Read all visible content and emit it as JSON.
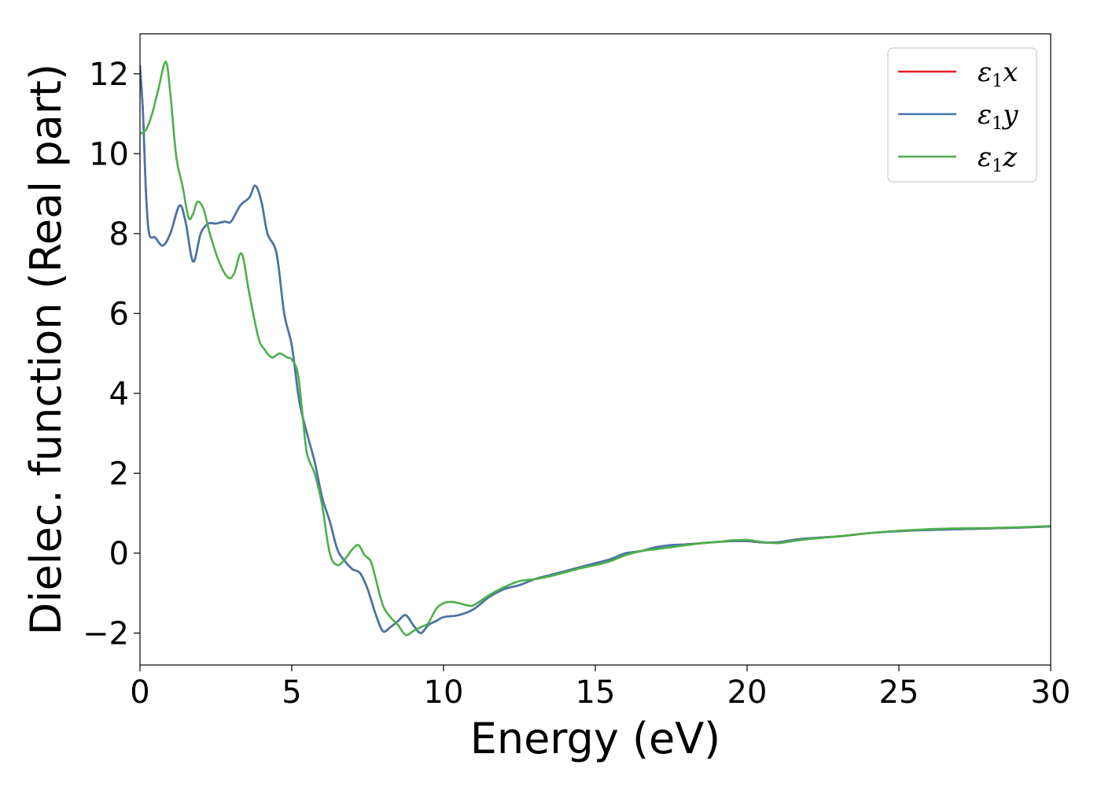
{
  "chart_data": {
    "type": "line",
    "xlabel": "Energy (eV)",
    "ylabel": "Dielec. function (Real part)",
    "xlim": [
      0,
      30
    ],
    "ylim": [
      -2.8,
      13
    ],
    "xticks": [
      0,
      5,
      10,
      15,
      20,
      25,
      30
    ],
    "yticks": [
      -2,
      0,
      2,
      4,
      6,
      8,
      10,
      12
    ],
    "ytick_labels": [
      "−2",
      "0",
      "2",
      "4",
      "6",
      "8",
      "10",
      "12"
    ],
    "grid": false,
    "legend_position": "top-right",
    "series": [
      {
        "name": "x",
        "legend_symbol": "ε",
        "legend_sub": "1",
        "color": "#e41a1c",
        "x": [
          0,
          0.1,
          0.2,
          0.3,
          0.5,
          0.75,
          1.0,
          1.3,
          1.5,
          1.75,
          2.0,
          2.25,
          2.5,
          2.8,
          3.0,
          3.3,
          3.6,
          3.8,
          4.0,
          4.2,
          4.5,
          4.75,
          5.0,
          5.25,
          5.5,
          5.75,
          6.0,
          6.25,
          6.5,
          6.75,
          7.0,
          7.25,
          7.5,
          7.75,
          8.0,
          8.25,
          8.5,
          8.75,
          9.0,
          9.25,
          9.5,
          9.75,
          10.0,
          10.5,
          11.0,
          11.5,
          12.0,
          12.5,
          13.0,
          13.5,
          14.0,
          14.5,
          15.0,
          15.5,
          16.0,
          16.5,
          17.0,
          17.5,
          18.0,
          18.5,
          19.0,
          19.5,
          20.0,
          20.5,
          21.0,
          21.5,
          22.0,
          23.0,
          24.0,
          25.0,
          26.0,
          27.0,
          28.0,
          29.0,
          30.0
        ],
        "y": [
          12.2,
          11.0,
          9.0,
          8.0,
          7.9,
          7.7,
          8.0,
          8.7,
          8.3,
          7.3,
          8.0,
          8.25,
          8.25,
          8.3,
          8.3,
          8.7,
          8.9,
          9.2,
          8.8,
          8.0,
          7.5,
          6.0,
          5.2,
          3.8,
          3.0,
          2.3,
          1.4,
          0.8,
          0.1,
          -0.2,
          -0.4,
          -0.5,
          -0.9,
          -1.5,
          -1.95,
          -1.85,
          -1.7,
          -1.55,
          -1.8,
          -2.0,
          -1.8,
          -1.7,
          -1.6,
          -1.55,
          -1.4,
          -1.1,
          -0.9,
          -0.8,
          -0.65,
          -0.55,
          -0.45,
          -0.35,
          -0.25,
          -0.15,
          0.0,
          0.05,
          0.15,
          0.2,
          0.22,
          0.25,
          0.28,
          0.3,
          0.3,
          0.27,
          0.27,
          0.33,
          0.37,
          0.42,
          0.5,
          0.55,
          0.58,
          0.6,
          0.62,
          0.64,
          0.67
        ]
      },
      {
        "name": "y",
        "legend_symbol": "ε",
        "legend_sub": "1",
        "color": "#4477aa",
        "x": [
          0,
          0.1,
          0.2,
          0.3,
          0.5,
          0.75,
          1.0,
          1.3,
          1.5,
          1.75,
          2.0,
          2.25,
          2.5,
          2.8,
          3.0,
          3.3,
          3.6,
          3.8,
          4.0,
          4.2,
          4.5,
          4.75,
          5.0,
          5.25,
          5.5,
          5.75,
          6.0,
          6.25,
          6.5,
          6.75,
          7.0,
          7.25,
          7.5,
          7.75,
          8.0,
          8.25,
          8.5,
          8.75,
          9.0,
          9.25,
          9.5,
          9.75,
          10.0,
          10.5,
          11.0,
          11.5,
          12.0,
          12.5,
          13.0,
          13.5,
          14.0,
          14.5,
          15.0,
          15.5,
          16.0,
          16.5,
          17.0,
          17.5,
          18.0,
          18.5,
          19.0,
          19.5,
          20.0,
          20.5,
          21.0,
          21.5,
          22.0,
          23.0,
          24.0,
          25.0,
          26.0,
          27.0,
          28.0,
          29.0,
          30.0
        ],
        "y": [
          12.2,
          11.0,
          9.0,
          8.0,
          7.9,
          7.7,
          8.0,
          8.7,
          8.3,
          7.3,
          8.0,
          8.25,
          8.25,
          8.3,
          8.3,
          8.7,
          8.9,
          9.2,
          8.8,
          8.0,
          7.5,
          6.0,
          5.2,
          3.8,
          3.0,
          2.3,
          1.4,
          0.8,
          0.1,
          -0.2,
          -0.4,
          -0.5,
          -0.9,
          -1.5,
          -1.95,
          -1.85,
          -1.7,
          -1.55,
          -1.8,
          -2.0,
          -1.8,
          -1.7,
          -1.6,
          -1.55,
          -1.4,
          -1.1,
          -0.9,
          -0.8,
          -0.65,
          -0.55,
          -0.45,
          -0.35,
          -0.25,
          -0.15,
          0.0,
          0.05,
          0.15,
          0.2,
          0.22,
          0.25,
          0.28,
          0.3,
          0.3,
          0.27,
          0.27,
          0.33,
          0.37,
          0.42,
          0.5,
          0.55,
          0.58,
          0.6,
          0.62,
          0.64,
          0.67
        ]
      },
      {
        "name": "z",
        "legend_symbol": "ε",
        "legend_sub": "1",
        "color": "#4daf4a",
        "x": [
          0,
          0.2,
          0.4,
          0.6,
          0.85,
          1.0,
          1.2,
          1.4,
          1.6,
          1.75,
          1.9,
          2.1,
          2.3,
          2.6,
          2.9,
          3.1,
          3.35,
          3.6,
          3.9,
          4.1,
          4.35,
          4.6,
          4.85,
          5.0,
          5.2,
          5.35,
          5.5,
          5.75,
          6.0,
          6.25,
          6.5,
          6.75,
          7.0,
          7.2,
          7.4,
          7.6,
          7.75,
          8.0,
          8.25,
          8.5,
          8.75,
          9.0,
          9.25,
          9.5,
          9.75,
          10.0,
          10.25,
          10.5,
          10.75,
          11.0,
          11.5,
          12.0,
          12.5,
          13.0,
          13.5,
          14.0,
          14.5,
          15.0,
          15.5,
          16.0,
          16.5,
          17.0,
          17.5,
          18.0,
          18.5,
          19.0,
          19.5,
          20.0,
          20.5,
          21.0,
          21.5,
          22.0,
          23.0,
          24.0,
          25.0,
          26.0,
          27.0,
          28.0,
          29.0,
          30.0
        ],
        "y": [
          10.5,
          10.6,
          11.0,
          11.6,
          12.3,
          11.5,
          9.9,
          9.2,
          8.4,
          8.5,
          8.8,
          8.6,
          8.0,
          7.3,
          6.9,
          7.0,
          7.5,
          6.5,
          5.4,
          5.1,
          4.9,
          5.0,
          4.9,
          4.85,
          4.5,
          3.5,
          2.5,
          2.0,
          1.2,
          0.0,
          -0.3,
          -0.15,
          0.1,
          0.2,
          -0.05,
          -0.2,
          -0.6,
          -1.3,
          -1.6,
          -1.8,
          -2.05,
          -1.95,
          -1.85,
          -1.75,
          -1.4,
          -1.25,
          -1.22,
          -1.25,
          -1.3,
          -1.3,
          -1.05,
          -0.85,
          -0.7,
          -0.65,
          -0.58,
          -0.48,
          -0.38,
          -0.3,
          -0.2,
          -0.05,
          0.05,
          0.1,
          0.15,
          0.2,
          0.25,
          0.28,
          0.32,
          0.33,
          0.28,
          0.25,
          0.3,
          0.35,
          0.42,
          0.5,
          0.56,
          0.6,
          0.62,
          0.63,
          0.65,
          0.68
        ]
      }
    ]
  }
}
